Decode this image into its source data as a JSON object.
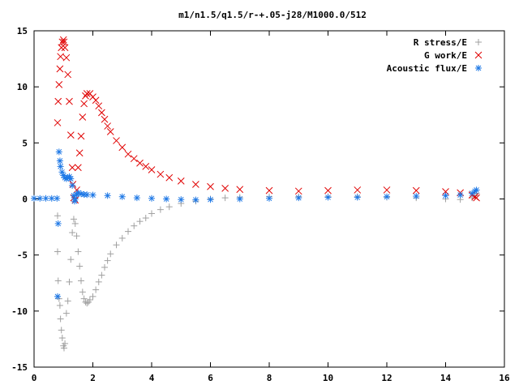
{
  "chart_data": {
    "type": "scatter",
    "title": "m1/n1.5/q1.5/r-+.05-j28/M1000.0/512",
    "xlabel": "",
    "ylabel": "",
    "xlim": [
      0,
      16
    ],
    "ylim": [
      -15,
      15
    ],
    "x_ticks": [
      "0",
      "2",
      "4",
      "6",
      "8",
      "10",
      "12",
      "14",
      "16"
    ],
    "y_ticks": [
      "15",
      "10",
      "5",
      "0",
      "-5",
      "-10",
      "-15"
    ],
    "grid": false,
    "legend_position": "top-right",
    "series": [
      {
        "name": "R stress/E",
        "marker": "plus",
        "color": "#a0a0a0",
        "points": [
          [
            0.8,
            -1.5
          ],
          [
            0.8,
            -4.7
          ],
          [
            0.82,
            -7.3
          ],
          [
            0.85,
            -8.9
          ],
          [
            0.88,
            -9.5
          ],
          [
            0.9,
            -10.7
          ],
          [
            0.93,
            -11.7
          ],
          [
            0.96,
            -12.4
          ],
          [
            1.0,
            -13.1
          ],
          [
            1.02,
            -13.3
          ],
          [
            1.05,
            -12.9
          ],
          [
            1.1,
            -10.2
          ],
          [
            1.15,
            -9.1
          ],
          [
            1.2,
            -7.4
          ],
          [
            1.25,
            -5.4
          ],
          [
            1.3,
            -3.0
          ],
          [
            1.35,
            -1.8
          ],
          [
            1.4,
            -2.2
          ],
          [
            1.45,
            -3.3
          ],
          [
            1.5,
            -4.7
          ],
          [
            1.55,
            -6.0
          ],
          [
            1.6,
            -7.3
          ],
          [
            1.65,
            -8.3
          ],
          [
            1.7,
            -8.9
          ],
          [
            1.75,
            -9.2
          ],
          [
            1.8,
            -9.3
          ],
          [
            1.85,
            -9.2
          ],
          [
            1.9,
            -9.0
          ],
          [
            2.0,
            -8.7
          ],
          [
            2.1,
            -8.1
          ],
          [
            2.2,
            -7.4
          ],
          [
            2.3,
            -6.8
          ],
          [
            2.4,
            -6.1
          ],
          [
            2.5,
            -5.5
          ],
          [
            2.6,
            -4.9
          ],
          [
            2.8,
            -4.1
          ],
          [
            3.0,
            -3.5
          ],
          [
            3.2,
            -2.9
          ],
          [
            3.4,
            -2.4
          ],
          [
            3.6,
            -2.0
          ],
          [
            3.8,
            -1.7
          ],
          [
            4.0,
            -1.3
          ],
          [
            4.3,
            -0.95
          ],
          [
            4.6,
            -0.7
          ],
          [
            5.0,
            -0.4
          ],
          [
            5.5,
            -0.2
          ],
          [
            6.0,
            0.0
          ],
          [
            6.5,
            0.1
          ],
          [
            7.0,
            0.15
          ],
          [
            8.0,
            0.2
          ],
          [
            9.0,
            0.2
          ],
          [
            10.0,
            0.2
          ],
          [
            11.0,
            0.2
          ],
          [
            12.0,
            0.15
          ],
          [
            13.0,
            0.1
          ],
          [
            14.0,
            0.0
          ],
          [
            14.5,
            -0.05
          ],
          [
            14.9,
            0.1
          ],
          [
            15.0,
            0.3
          ],
          [
            15.05,
            0.5
          ]
        ]
      },
      {
        "name": "G work/E",
        "marker": "cross",
        "color": "#e00000",
        "points": [
          [
            0.8,
            6.8
          ],
          [
            0.82,
            8.7
          ],
          [
            0.85,
            10.2
          ],
          [
            0.88,
            11.6
          ],
          [
            0.9,
            12.7
          ],
          [
            0.93,
            13.5
          ],
          [
            0.96,
            14.0
          ],
          [
            1.0,
            14.2
          ],
          [
            1.02,
            14.0
          ],
          [
            1.05,
            13.5
          ],
          [
            1.1,
            12.6
          ],
          [
            1.15,
            11.1
          ],
          [
            1.2,
            8.7
          ],
          [
            1.25,
            5.7
          ],
          [
            1.3,
            2.8
          ],
          [
            1.32,
            1.3
          ],
          [
            1.35,
            0.1
          ],
          [
            1.4,
            -0.1
          ],
          [
            1.45,
            0.8
          ],
          [
            1.5,
            2.8
          ],
          [
            1.55,
            4.1
          ],
          [
            1.6,
            5.6
          ],
          [
            1.65,
            7.3
          ],
          [
            1.7,
            8.5
          ],
          [
            1.75,
            9.2
          ],
          [
            1.8,
            9.4
          ],
          [
            1.9,
            9.4
          ],
          [
            2.0,
            9.1
          ],
          [
            2.1,
            8.8
          ],
          [
            2.2,
            8.3
          ],
          [
            2.3,
            7.7
          ],
          [
            2.4,
            7.1
          ],
          [
            2.5,
            6.5
          ],
          [
            2.6,
            6.0
          ],
          [
            2.8,
            5.2
          ],
          [
            3.0,
            4.6
          ],
          [
            3.2,
            4.0
          ],
          [
            3.4,
            3.6
          ],
          [
            3.6,
            3.2
          ],
          [
            3.8,
            2.9
          ],
          [
            4.0,
            2.6
          ],
          [
            4.3,
            2.2
          ],
          [
            4.6,
            1.9
          ],
          [
            5.0,
            1.6
          ],
          [
            5.5,
            1.3
          ],
          [
            6.0,
            1.1
          ],
          [
            6.5,
            0.95
          ],
          [
            7.0,
            0.85
          ],
          [
            8.0,
            0.75
          ],
          [
            9.0,
            0.7
          ],
          [
            10.0,
            0.75
          ],
          [
            11.0,
            0.8
          ],
          [
            12.0,
            0.8
          ],
          [
            13.0,
            0.75
          ],
          [
            14.0,
            0.65
          ],
          [
            14.5,
            0.55
          ],
          [
            14.9,
            0.35
          ],
          [
            15.0,
            0.2
          ],
          [
            15.05,
            0.1
          ]
        ]
      },
      {
        "name": "Acoustic flux/E",
        "marker": "star",
        "color": "#1e78e6",
        "points": [
          [
            0.0,
            0.05
          ],
          [
            0.2,
            0.05
          ],
          [
            0.4,
            0.05
          ],
          [
            0.6,
            0.05
          ],
          [
            0.78,
            0.05
          ],
          [
            0.8,
            -8.7
          ],
          [
            0.82,
            -2.2
          ],
          [
            0.85,
            4.2
          ],
          [
            0.88,
            3.4
          ],
          [
            0.9,
            2.9
          ],
          [
            0.95,
            2.4
          ],
          [
            1.0,
            2.1
          ],
          [
            1.05,
            1.9
          ],
          [
            1.1,
            1.8
          ],
          [
            1.15,
            1.9
          ],
          [
            1.2,
            2.0
          ],
          [
            1.25,
            1.8
          ],
          [
            1.3,
            1.2
          ],
          [
            1.35,
            0.3
          ],
          [
            1.38,
            -0.2
          ],
          [
            1.4,
            0.0
          ],
          [
            1.45,
            0.4
          ],
          [
            1.5,
            0.55
          ],
          [
            1.6,
            0.45
          ],
          [
            1.7,
            0.4
          ],
          [
            1.8,
            0.38
          ],
          [
            2.0,
            0.35
          ],
          [
            2.5,
            0.3
          ],
          [
            3.0,
            0.2
          ],
          [
            3.5,
            0.1
          ],
          [
            4.0,
            0.05
          ],
          [
            4.5,
            0.0
          ],
          [
            5.0,
            -0.05
          ],
          [
            5.5,
            -0.08
          ],
          [
            6.0,
            -0.05
          ],
          [
            7.0,
            0.0
          ],
          [
            8.0,
            0.05
          ],
          [
            9.0,
            0.1
          ],
          [
            10.0,
            0.15
          ],
          [
            11.0,
            0.15
          ],
          [
            12.0,
            0.2
          ],
          [
            13.0,
            0.25
          ],
          [
            14.0,
            0.3
          ],
          [
            14.5,
            0.35
          ],
          [
            14.9,
            0.5
          ],
          [
            15.0,
            0.7
          ],
          [
            15.05,
            0.8
          ]
        ]
      }
    ]
  }
}
